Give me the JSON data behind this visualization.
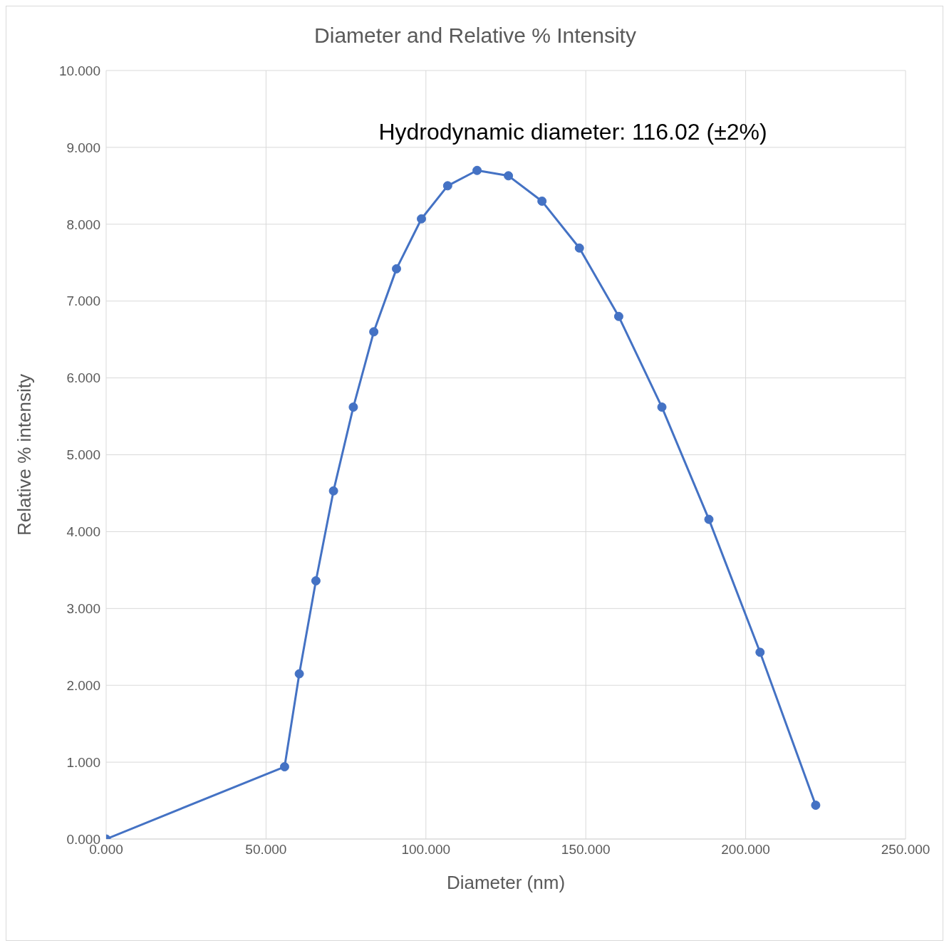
{
  "chart_data": {
    "type": "line",
    "title": "Diameter and Relative % Intensity",
    "xlabel": "Diameter (nm)",
    "ylabel": "Relative % intensity",
    "annotations": [
      "Hydrodynamic diameter: 116.02 (±2%)"
    ],
    "x": [
      0,
      55.8,
      60.4,
      65.6,
      71.1,
      77.3,
      83.7,
      90.8,
      98.6,
      106.8,
      116.0,
      125.8,
      136.3,
      148.0,
      160.3,
      173.8,
      188.5,
      204.5,
      221.9
    ],
    "series": [
      {
        "color": "#4472c4",
        "values": [
          0,
          0.94,
          2.15,
          3.36,
          4.53,
          5.62,
          6.6,
          7.42,
          8.07,
          8.5,
          8.7,
          8.63,
          8.3,
          7.69,
          6.8,
          5.62,
          4.16,
          2.43,
          0.44
        ]
      }
    ],
    "xlim": [
      0,
      250
    ],
    "ylim": [
      0,
      10
    ],
    "xticks": [
      {
        "value": 0,
        "label": "0.000"
      },
      {
        "value": 50,
        "label": "50.000"
      },
      {
        "value": 100,
        "label": "100.000"
      },
      {
        "value": 150,
        "label": "150.000"
      },
      {
        "value": 200,
        "label": "200.000"
      },
      {
        "value": 250,
        "label": "250.000"
      }
    ],
    "yticks": [
      {
        "value": 0,
        "label": "0.000"
      },
      {
        "value": 1,
        "label": "1.000"
      },
      {
        "value": 2,
        "label": "2.000"
      },
      {
        "value": 3,
        "label": "3.000"
      },
      {
        "value": 4,
        "label": "4.000"
      },
      {
        "value": 5,
        "label": "5.000"
      },
      {
        "value": 6,
        "label": "6.000"
      },
      {
        "value": 7,
        "label": "7.000"
      },
      {
        "value": 8,
        "label": "8.000"
      },
      {
        "value": 9,
        "label": "9.000"
      },
      {
        "value": 10,
        "label": "10.000"
      }
    ],
    "grid": true,
    "legend": false,
    "marker": "circle",
    "line_style": "solid"
  }
}
